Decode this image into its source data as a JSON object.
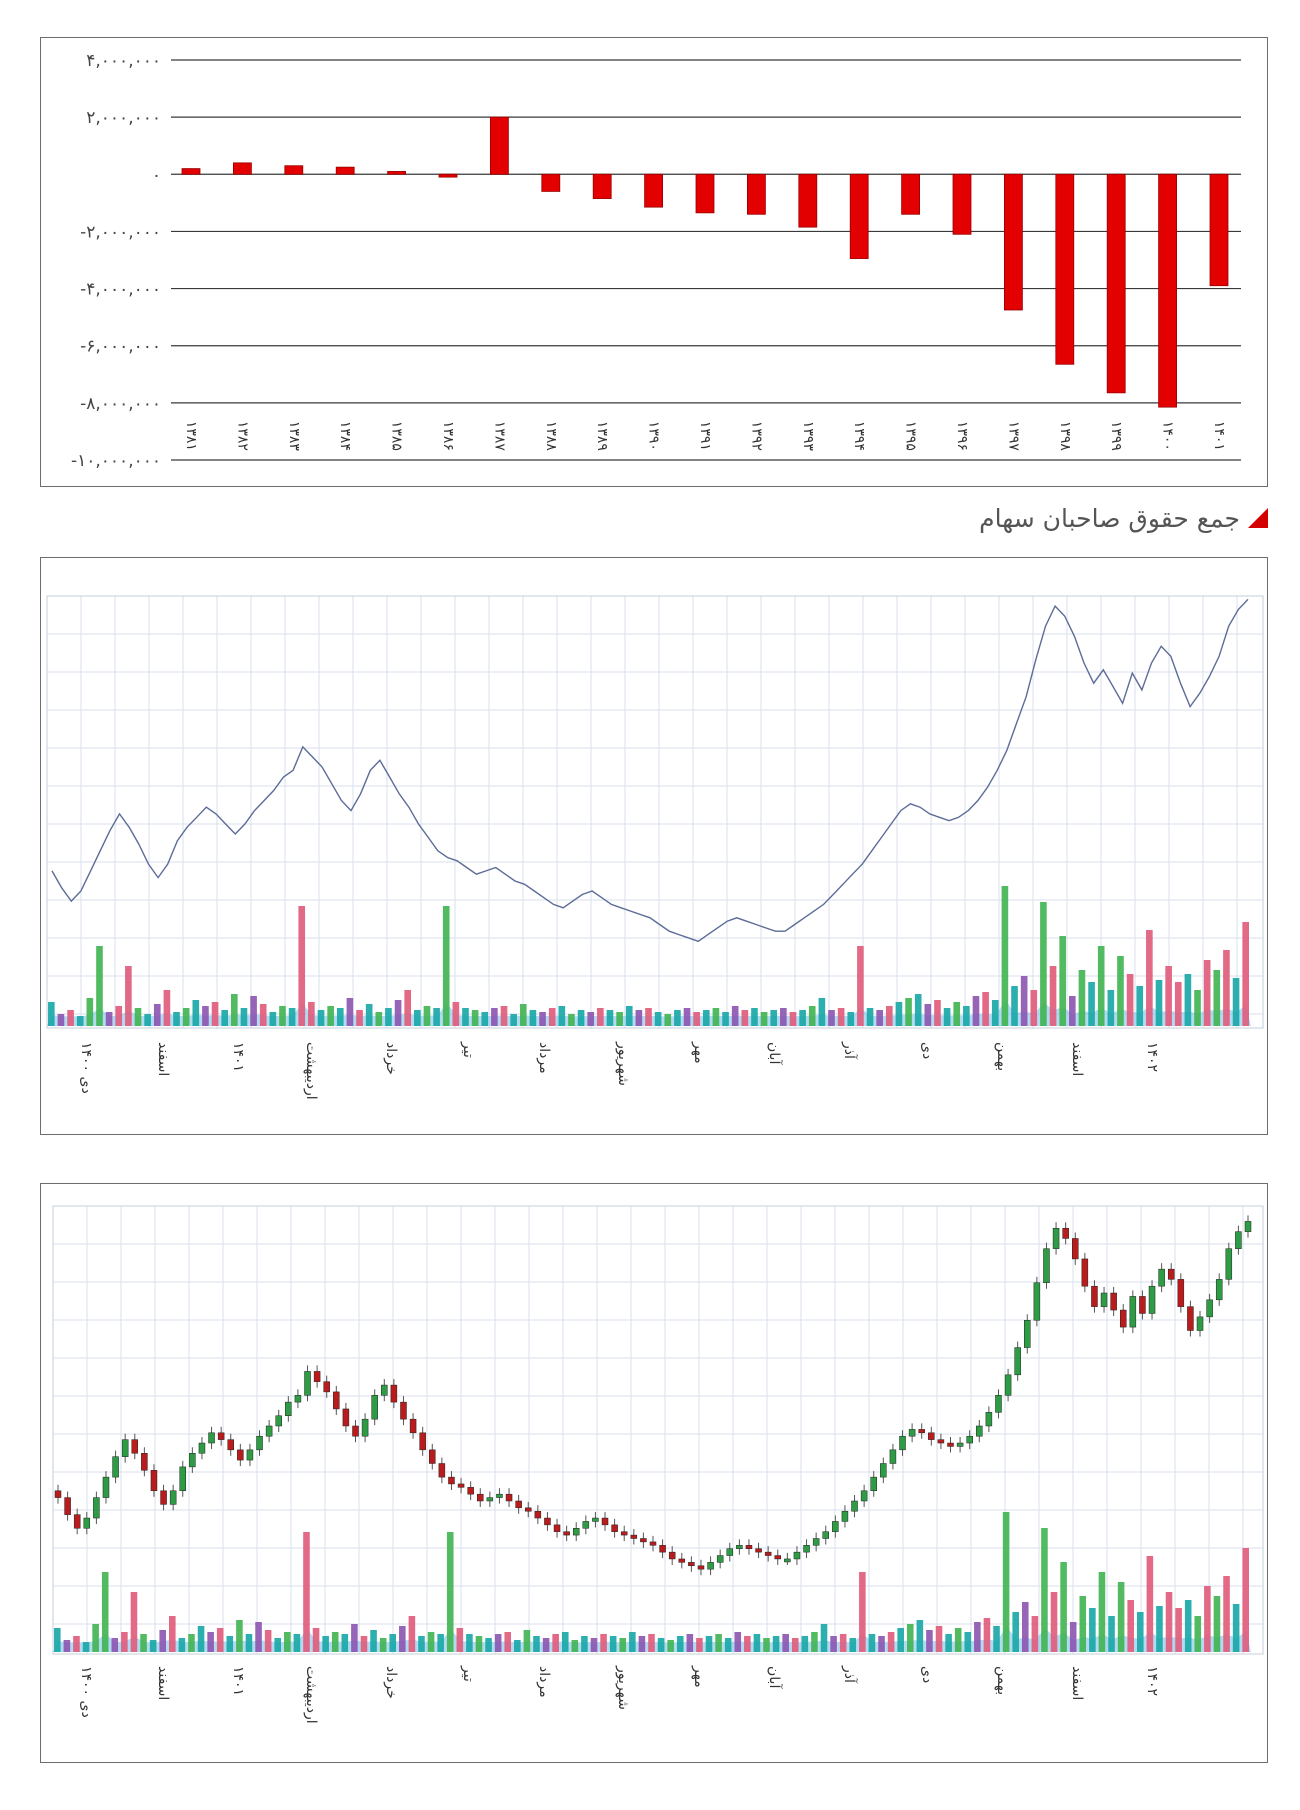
{
  "colors": {
    "bar_red": "#e30000",
    "bar_red_edge": "#9a0000",
    "grid_dark": "#3a3a3a",
    "line_blue": "#5c6c98",
    "grid_light": "#d9e1ec",
    "vol_green": "#3fb451",
    "vol_pink": "#e05a7a",
    "vol_purple": "#8c54b0",
    "vol_teal": "#17a6a6",
    "vol_area": "#7ec3ea",
    "candle_green": "#2e9b45",
    "candle_red": "#b81c1c"
  },
  "caption": {
    "text": "جمع حقوق صاحبان سهام",
    "icon": "red-triangle-marker"
  },
  "chart_data": [
    {
      "type": "bar",
      "categories": [
        "۱۳۸۱",
        "۱۳۸۲",
        "۱۳۸۳",
        "۱۳۸۴",
        "۱۳۸۵",
        "۱۳۸۶",
        "۱۳۸۷",
        "۱۳۸۸",
        "۱۳۸۹",
        "۱۳۹۰",
        "۱۳۹۱",
        "۱۳۹۲",
        "۱۳۹۳",
        "۱۳۹۴",
        "۱۳۹۵",
        "۱۳۹۶",
        "۱۳۹۷",
        "۱۳۹۸",
        "۱۳۹۹",
        "۱۴۰۰",
        "۱۴۰۱"
      ],
      "values": [
        200000,
        400000,
        300000,
        250000,
        100000,
        -100000,
        2000000,
        -600000,
        -850000,
        -1150000,
        -1350000,
        -1400000,
        -1850000,
        -2950000,
        -1400000,
        -2100000,
        -4750000,
        -6650000,
        -7650000,
        -8150000,
        -3900000
      ],
      "yticks": [
        4000000,
        2000000,
        0,
        -2000000,
        -4000000,
        -6000000,
        -8000000,
        -10000000
      ],
      "ytick_labels": [
        "۴,۰۰۰,۰۰۰",
        "۲,۰۰۰,۰۰۰",
        "۰",
        "-۲,۰۰۰,۰۰۰",
        "-۴,۰۰۰,۰۰۰",
        "-۶,۰۰۰,۰۰۰",
        "-۸,۰۰۰,۰۰۰",
        "-۱۰,۰۰۰,۰۰۰"
      ],
      "ylim": [
        -10000000,
        4000000
      ],
      "grid": true
    },
    {
      "type": "line",
      "x_labels": [
        "دی ۱۴۰۰",
        "اسفند",
        "۱۴۰۱",
        "اردیبهشت",
        "خرداد",
        "تیر",
        "مرداد",
        "شهریور",
        "مهر",
        "آبان",
        "آذر",
        "دی",
        "بهمن",
        "اسفند",
        "۱۴۰۲"
      ],
      "price": [
        78,
        73,
        69,
        72,
        78,
        84,
        90,
        95,
        91,
        86,
        80,
        76,
        80,
        87,
        91,
        94,
        97,
        95,
        92,
        89,
        92,
        96,
        99,
        102,
        106,
        108,
        115,
        112,
        109,
        104,
        99,
        96,
        101,
        108,
        111,
        106,
        101,
        97,
        92,
        88,
        84,
        82,
        81,
        79,
        77,
        78,
        79,
        77,
        75,
        74,
        72,
        70,
        68,
        67,
        69,
        71,
        72,
        70,
        68,
        67,
        66,
        65,
        64,
        62,
        60,
        59,
        58,
        57,
        59,
        61,
        63,
        64,
        63,
        62,
        61,
        60,
        60,
        62,
        64,
        66,
        68,
        71,
        74,
        77,
        80,
        84,
        88,
        92,
        96,
        98,
        97,
        95,
        94,
        93,
        94,
        96,
        99,
        103,
        108,
        114,
        122,
        130,
        141,
        151,
        157,
        154,
        148,
        140,
        134,
        138,
        133,
        128,
        137,
        132,
        140,
        145,
        142,
        134,
        127,
        131,
        136,
        142,
        151,
        156,
        159
      ],
      "volume": [
        12,
        6,
        8,
        5,
        14,
        40,
        7,
        10,
        30,
        9,
        6,
        11,
        18,
        7,
        9,
        13,
        10,
        12,
        8,
        16,
        9,
        15,
        11,
        7,
        10,
        9,
        60,
        12,
        8,
        10,
        9,
        14,
        8,
        11,
        7,
        9,
        13,
        18,
        8,
        10,
        9,
        60,
        12,
        9,
        8,
        7,
        9,
        10,
        6,
        11,
        8,
        7,
        9,
        10,
        6,
        8,
        7,
        9,
        8,
        7,
        10,
        8,
        9,
        7,
        6,
        8,
        9,
        7,
        8,
        9,
        7,
        10,
        8,
        9,
        7,
        8,
        9,
        7,
        8,
        10,
        14,
        8,
        9,
        7,
        40,
        9,
        8,
        10,
        12,
        14,
        16,
        11,
        13,
        9,
        12,
        10,
        15,
        17,
        13,
        70,
        20,
        25,
        18,
        62,
        30,
        45,
        15,
        28,
        22,
        40,
        18,
        35,
        26,
        20,
        48,
        23,
        30,
        22,
        26,
        18,
        33,
        28,
        38,
        24,
        52
      ]
    },
    {
      "type": "candlestick",
      "x_labels": [
        "دی ۱۴۰۰",
        "اسفند",
        "۱۴۰۱",
        "اردیبهشت",
        "خرداد",
        "تیر",
        "مرداد",
        "شهریور",
        "مهر",
        "آبان",
        "آذر",
        "دی",
        "بهمن",
        "اسفند",
        "۱۴۰۲"
      ],
      "close": [
        78,
        73,
        69,
        72,
        78,
        84,
        90,
        95,
        91,
        86,
        80,
        76,
        80,
        87,
        91,
        94,
        97,
        95,
        92,
        89,
        92,
        96,
        99,
        102,
        106,
        108,
        115,
        112,
        109,
        104,
        99,
        96,
        101,
        108,
        111,
        106,
        101,
        97,
        92,
        88,
        84,
        82,
        81,
        79,
        77,
        78,
        79,
        77,
        75,
        74,
        72,
        70,
        68,
        67,
        69,
        71,
        72,
        70,
        68,
        67,
        66,
        65,
        64,
        62,
        60,
        59,
        58,
        57,
        59,
        61,
        63,
        64,
        63,
        62,
        61,
        60,
        60,
        62,
        64,
        66,
        68,
        71,
        74,
        77,
        80,
        84,
        88,
        92,
        96,
        98,
        97,
        95,
        94,
        93,
        94,
        96,
        99,
        103,
        108,
        114,
        122,
        130,
        141,
        151,
        157,
        154,
        148,
        140,
        134,
        138,
        133,
        128,
        137,
        132,
        140,
        145,
        142,
        134,
        127,
        131,
        136,
        142,
        151,
        156,
        159
      ]
    }
  ]
}
